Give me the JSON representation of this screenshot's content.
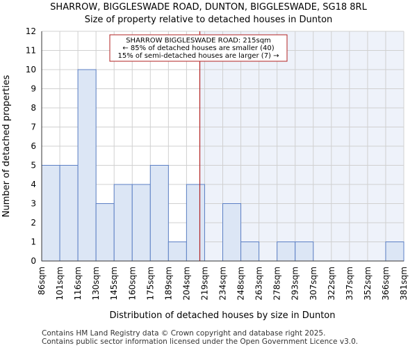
{
  "chart_data": {
    "type": "bar",
    "title": "SHARROW, BIGGLESWADE ROAD, DUNTON, BIGGLESWADE, SG18 8RL",
    "subtitle": "Size of property relative to detached houses in Dunton",
    "xlabel": "Distribution of detached houses by size in Dunton",
    "ylabel": "Number of detached properties",
    "x_tick_labels": [
      "86sqm",
      "101sqm",
      "116sqm",
      "130sqm",
      "145sqm",
      "160sqm",
      "175sqm",
      "189sqm",
      "204sqm",
      "219sqm",
      "234sqm",
      "248sqm",
      "263sqm",
      "278sqm",
      "293sqm",
      "307sqm",
      "322sqm",
      "337sqm",
      "352sqm",
      "366sqm",
      "381sqm"
    ],
    "values": [
      5,
      5,
      10,
      3,
      4,
      4,
      5,
      1,
      4,
      0,
      3,
      1,
      0,
      1,
      1,
      0,
      0,
      0,
      0,
      1
    ],
    "y_ticks": [
      0,
      1,
      2,
      3,
      4,
      5,
      6,
      7,
      8,
      9,
      10,
      11,
      12
    ],
    "ylim": [
      0,
      12
    ],
    "grid": true,
    "bar_color": "#dce6f5",
    "bar_edge_color": "#5b7fc4",
    "highlight_region_color": "#eef2fa",
    "marker": {
      "value_sqm": 215,
      "color": "#b22222",
      "annotation_lines": [
        "SHARROW BIGGLESWADE ROAD: 215sqm",
        "← 85% of detached houses are smaller (40)",
        "15% of semi-detached houses are larger (7) →"
      ]
    }
  },
  "footer": {
    "line1": "Contains HM Land Registry data © Crown copyright and database right 2025.",
    "line2": "Contains public sector information licensed under the Open Government Licence v3.0."
  }
}
